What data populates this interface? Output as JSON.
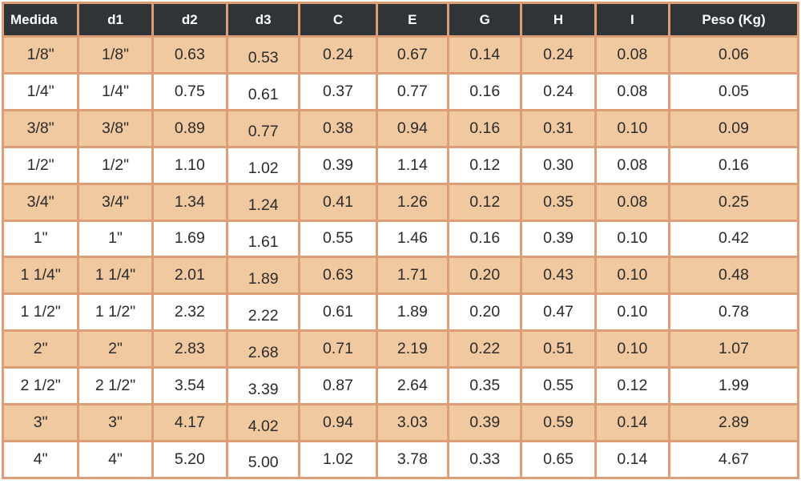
{
  "table": {
    "columns": [
      "Medida",
      "d1",
      "d2",
      "d3",
      "C",
      "E",
      "G",
      "H",
      "I",
      "Peso (Kg)"
    ],
    "rows": [
      [
        "1/8\"",
        "1/8\"",
        "0.63",
        "0.53",
        "0.24",
        "0.67",
        "0.14",
        "0.24",
        "0.08",
        "0.06"
      ],
      [
        "1/4\"",
        "1/4\"",
        "0.75",
        "0.61",
        "0.37",
        "0.77",
        "0.16",
        "0.24",
        "0.08",
        "0.05"
      ],
      [
        "3/8\"",
        "3/8\"",
        "0.89",
        "0.77",
        "0.38",
        "0.94",
        "0.16",
        "0.31",
        "0.10",
        "0.09"
      ],
      [
        "1/2\"",
        "1/2\"",
        "1.10",
        "1.02",
        "0.39",
        "1.14",
        "0.12",
        "0.30",
        "0.08",
        "0.16"
      ],
      [
        "3/4\"",
        "3/4\"",
        "1.34",
        "1.24",
        "0.41",
        "1.26",
        "0.12",
        "0.35",
        "0.08",
        "0.25"
      ],
      [
        "1\"",
        "1\"",
        "1.69",
        "1.61",
        "0.55",
        "1.46",
        "0.16",
        "0.39",
        "0.10",
        "0.42"
      ],
      [
        "1 1/4\"",
        "1 1/4\"",
        "2.01",
        "1.89",
        "0.63",
        "1.71",
        "0.20",
        "0.43",
        "0.10",
        "0.48"
      ],
      [
        "1 1/2\"",
        "1 1/2\"",
        "2.32",
        "2.22",
        "0.61",
        "1.89",
        "0.20",
        "0.47",
        "0.10",
        "0.78"
      ],
      [
        "2\"",
        "2\"",
        "2.83",
        "2.68",
        "0.71",
        "2.19",
        "0.22",
        "0.51",
        "0.10",
        "1.07"
      ],
      [
        "2 1/2\"",
        "2 1/2\"",
        "3.54",
        "3.39",
        "0.87",
        "2.64",
        "0.35",
        "0.55",
        "0.12",
        "1.99"
      ],
      [
        "3\"",
        "3\"",
        "4.17",
        "4.02",
        "0.94",
        "3.03",
        "0.39",
        "0.59",
        "0.14",
        "2.89"
      ],
      [
        "4\"",
        "4\"",
        "5.20",
        "5.00",
        "1.02",
        "3.78",
        "0.33",
        "0.65",
        "0.14",
        "4.67"
      ]
    ]
  },
  "colors": {
    "header_bg": "#2f3437",
    "header_text": "#ffffff",
    "row_alt_bg": "#f1c9a0",
    "row_bg": "#ffffff",
    "border": "#dd9e77",
    "text": "#2b2b2b"
  }
}
